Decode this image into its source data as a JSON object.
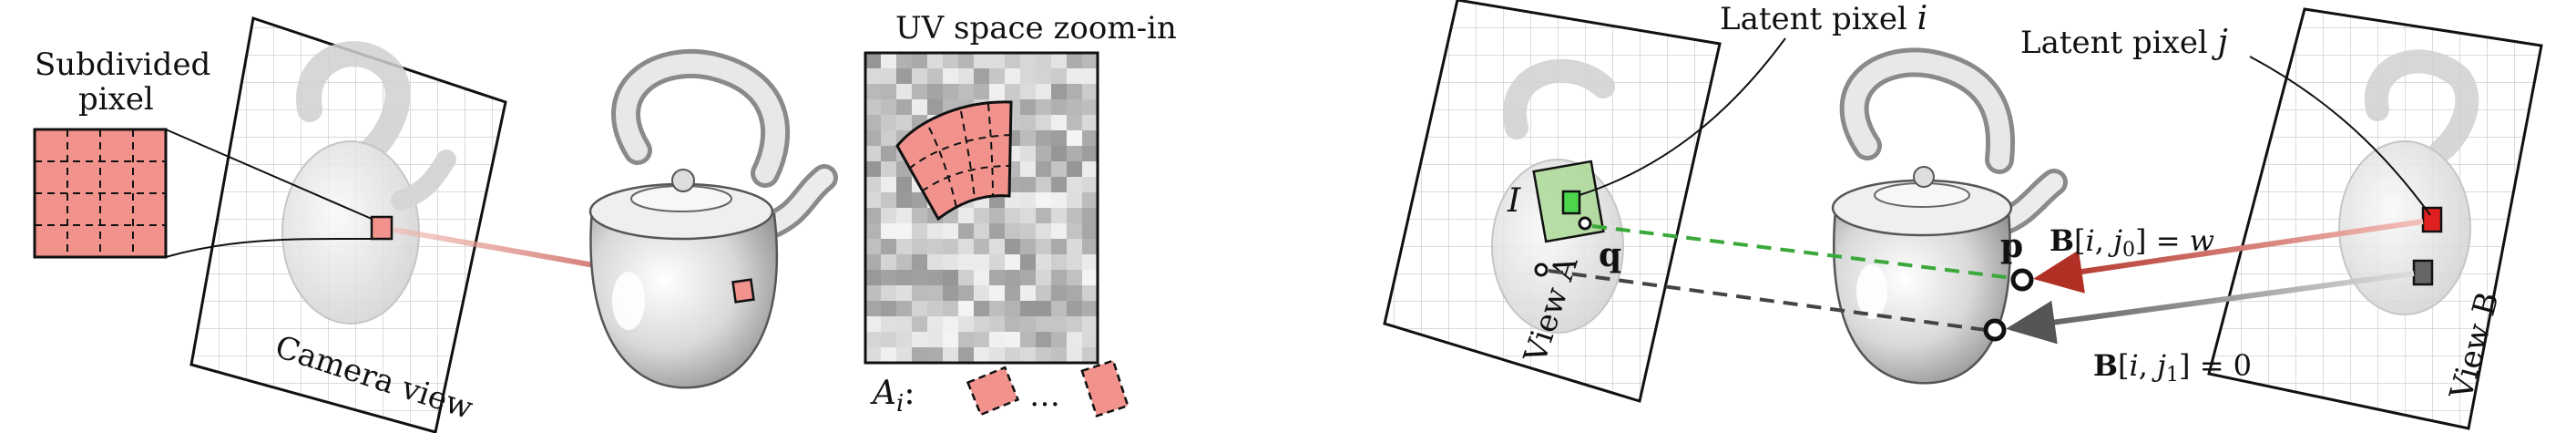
{
  "left_panel": {
    "subdivided_pixel_label": [
      "Subdivided",
      "pixel"
    ],
    "camera_view_label": "Camera view",
    "uv_title": "UV space zoom-in",
    "area_label": "A",
    "area_subscript": "i",
    "area_colon": ":",
    "ellipsis": "…"
  },
  "right_panel": {
    "latent_pixel_i": "Latent pixel",
    "latent_pixel_i_var": "i",
    "latent_pixel_j": "Latent pixel",
    "latent_pixel_j_var": "j",
    "set_label": "I",
    "point_q": "q",
    "point_p": "p",
    "view_a_label": "View A",
    "view_b_label": "View B",
    "eq_w": "B[i, j0] = w",
    "eq_w_parts": [
      "B",
      "[",
      "i",
      ", ",
      "j",
      "0",
      "] = ",
      "w"
    ],
    "eq_zero_parts": [
      "B",
      "[",
      "i",
      ", ",
      "j",
      "1",
      "] = ",
      "0"
    ]
  },
  "colors": {
    "pink": "#f1938c",
    "red": "#c0392b",
    "green": "#a8d890",
    "green_dash": "#4caf50",
    "gray": "#555555",
    "grid": "#c8c8c8"
  }
}
